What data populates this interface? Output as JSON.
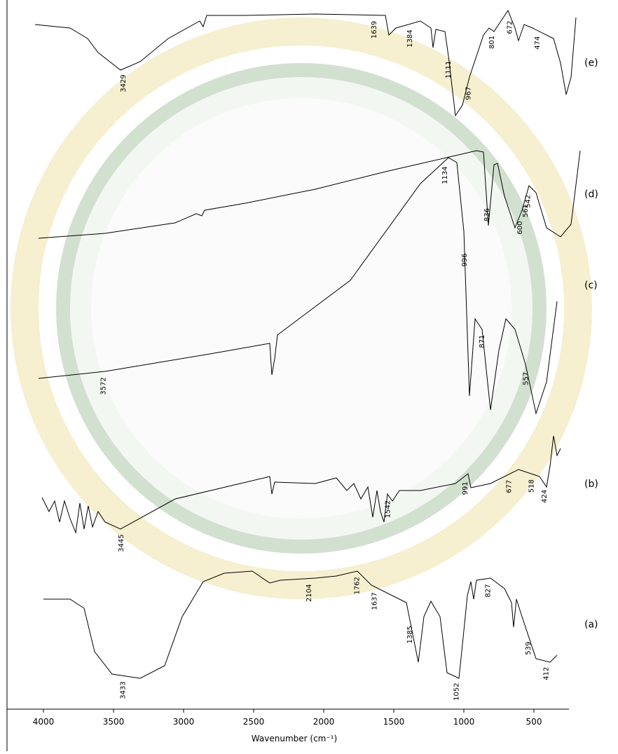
{
  "chart_data": {
    "type": "line",
    "x_label": "Wavenumber (cm⁻¹)",
    "xlim": [
      4260,
      170
    ],
    "xticks": [
      4000,
      3500,
      3000,
      2500,
      2000,
      1500,
      1000,
      500
    ],
    "ylim": [
      0,
      100
    ],
    "series": [
      {
        "name": "(e)",
        "color": "#000000",
        "x": [
          4060,
          3810,
          3685,
          3610,
          3450,
          3310,
          3110,
          2885,
          2860,
          2835,
          2560,
          2060,
          1560,
          1535,
          1485,
          1310,
          1235,
          1220,
          1200,
          1135,
          1110,
          1060,
          1010,
          960,
          860,
          820,
          785,
          735,
          685,
          635,
          610,
          570,
          510,
          360,
          310,
          270,
          235,
          200
        ],
        "values": [
          97.5,
          97.0,
          95.5,
          93.5,
          91.0,
          92.2,
          95.5,
          98.0,
          97.2,
          98.8,
          98.8,
          99.0,
          98.8,
          96.0,
          97.0,
          98.0,
          97.0,
          94.2,
          96.8,
          96.5,
          93.0,
          84.5,
          86.0,
          90.0,
          96.0,
          97.0,
          96.5,
          98.0,
          99.5,
          97.0,
          95.2,
          97.5,
          97.0,
          95.5,
          92.0,
          87.5,
          90.0,
          98.5
        ],
        "peaks": [
          3429,
          1639,
          1384,
          1111,
          967,
          801,
          672,
          474
        ]
      },
      {
        "name": "(d)",
        "color": "#000000",
        "x": [
          4035,
          3560,
          3060,
          2910,
          2870,
          2850,
          2560,
          2060,
          1560,
          1060,
          910,
          860,
          825,
          785,
          760,
          710,
          635,
          585,
          535,
          485,
          410,
          310,
          235,
          170
        ],
        "values": [
          67.0,
          67.7,
          69.2,
          70.5,
          70.2,
          71.0,
          72.0,
          74.0,
          76.5,
          78.8,
          79.5,
          79.3,
          68.8,
          77.5,
          77.7,
          73.0,
          68.5,
          71.0,
          74.5,
          73.5,
          68.5,
          67.2,
          69.0,
          79.5
        ],
        "peaks": [
          561,
          836,
          600,
          542
        ]
      },
      {
        "name": "(c)",
        "color": "#000000",
        "x": [
          4035,
          3560,
          2810,
          2385,
          2370,
          2350,
          2330,
          1810,
          1310,
          1110,
          1050,
          1000,
          960,
          920,
          870,
          810,
          750,
          700,
          635,
          560,
          485,
          410,
          335
        ],
        "values": [
          47.0,
          48.0,
          50.5,
          52.0,
          47.5,
          49.8,
          53.2,
          61.0,
          74.8,
          78.5,
          77.8,
          68.0,
          44.5,
          55.5,
          54.0,
          42.5,
          51.0,
          55.5,
          54.0,
          49.0,
          42.0,
          46.5,
          58.0
        ],
        "peaks": [
          3572,
          1134,
          996,
          871,
          557
        ]
      },
      {
        "name": "(b)",
        "color": "#000000",
        "x": [
          4010,
          3960,
          3920,
          3885,
          3850,
          3810,
          3770,
          3740,
          3710,
          3680,
          3650,
          3610,
          3560,
          3450,
          3060,
          2385,
          2370,
          2350,
          2060,
          1910,
          1835,
          1785,
          1735,
          1685,
          1650,
          1620,
          1595,
          1570,
          1545,
          1510,
          1460,
          1310,
          1060,
          970,
          950,
          810,
          610,
          460,
          410,
          385,
          360,
          335,
          310
        ],
        "values": [
          30.0,
          28.0,
          29.5,
          26.5,
          29.5,
          27.0,
          25.0,
          29.2,
          25.5,
          28.8,
          25.8,
          28.0,
          26.5,
          25.5,
          29.8,
          33.0,
          30.5,
          32.2,
          32.0,
          32.8,
          31.0,
          32.0,
          29.8,
          31.5,
          27.2,
          31.0,
          28.0,
          26.5,
          30.5,
          29.5,
          31.0,
          31.0,
          32.0,
          33.4,
          31.4,
          32.0,
          34.0,
          33.0,
          31.5,
          34.5,
          38.8,
          36.0,
          37.0
        ],
        "peaks": [
          3445,
          1542,
          991,
          677,
          518,
          424
        ]
      },
      {
        "name": "(a)",
        "color": "#000000",
        "x": [
          4000,
          3810,
          3710,
          3635,
          3510,
          3310,
          3135,
          3010,
          2860,
          2710,
          2510,
          2385,
          2310,
          2060,
          1910,
          1760,
          1660,
          1510,
          1410,
          1325,
          1285,
          1235,
          1170,
          1120,
          1035,
          1000,
          975,
          950,
          930,
          910,
          810,
          710,
          660,
          645,
          625,
          585,
          485,
          385,
          335
        ],
        "values": [
          15.5,
          15.5,
          14.2,
          8.0,
          4.8,
          4.2,
          6.0,
          13.0,
          18.0,
          19.2,
          19.5,
          17.8,
          18.2,
          18.5,
          18.8,
          19.5,
          17.5,
          16.0,
          15.0,
          6.5,
          13.0,
          15.2,
          13.0,
          5.0,
          4.2,
          11.0,
          16.0,
          18.0,
          15.5,
          18.2,
          18.5,
          17.0,
          15.0,
          11.5,
          15.5,
          13.0,
          7.0,
          6.5,
          7.5
        ],
        "peaks": [
          3433,
          2104,
          1762,
          1637,
          1385,
          1052,
          827,
          539,
          412
        ]
      }
    ]
  }
}
